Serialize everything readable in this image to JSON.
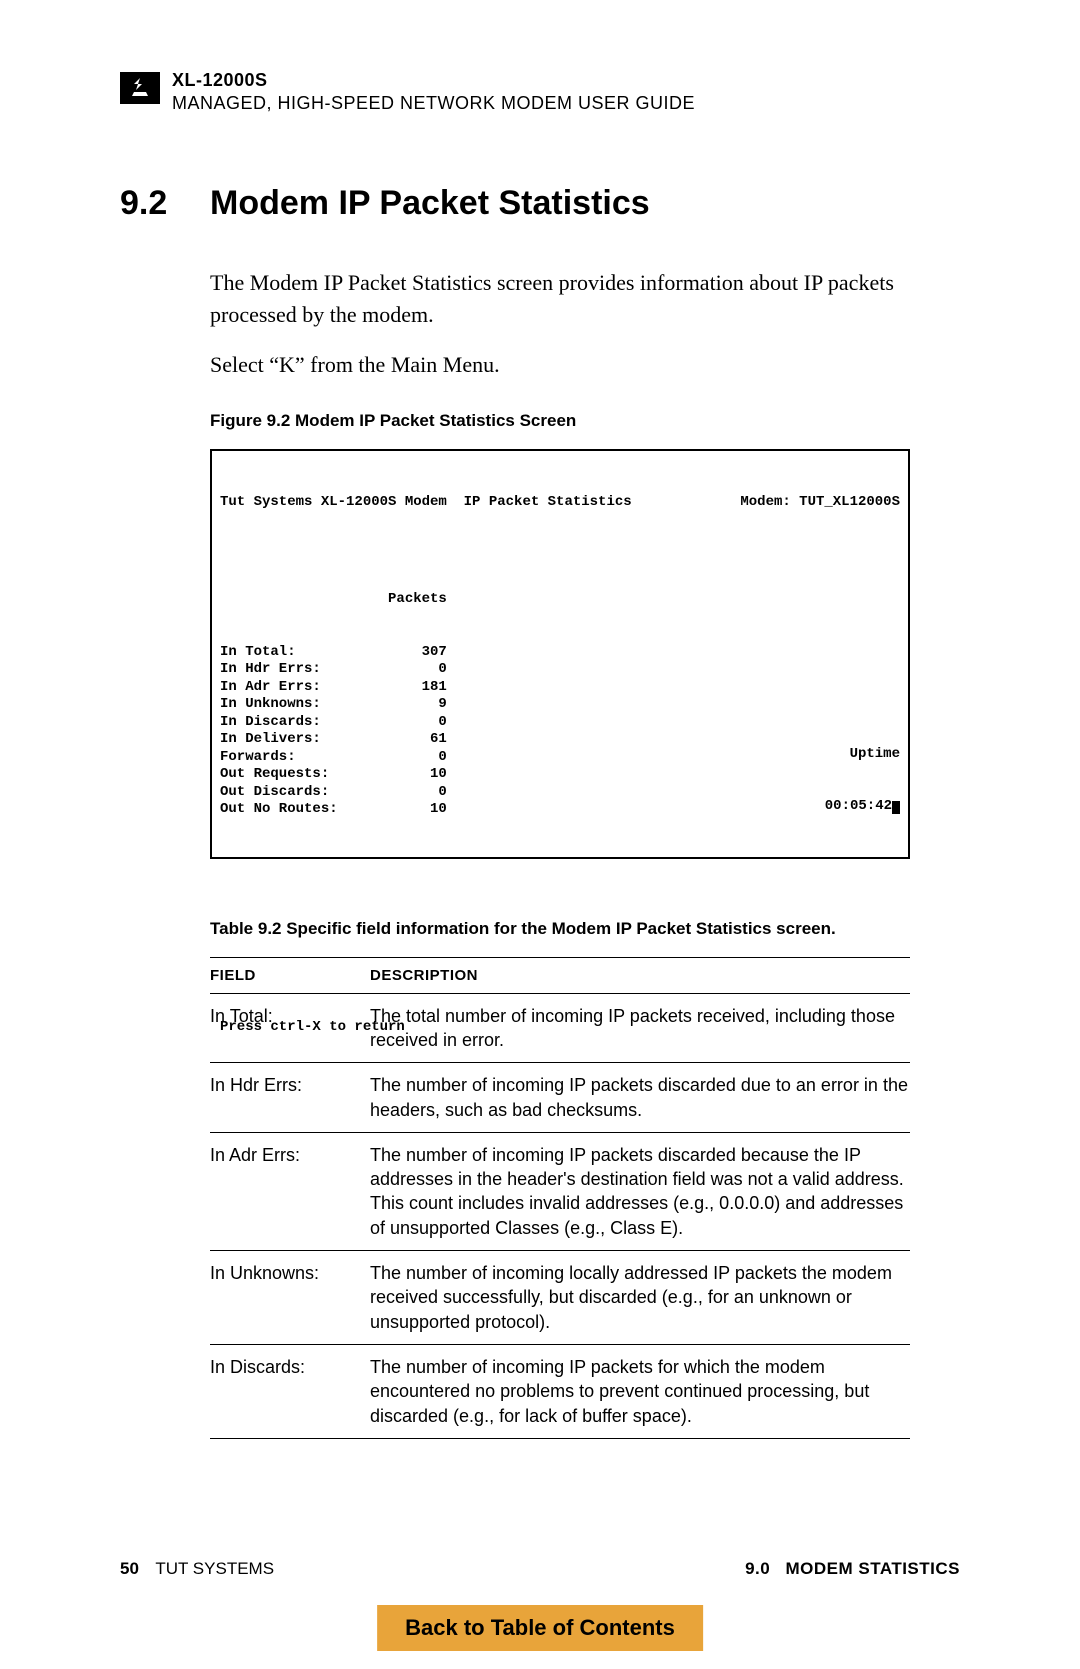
{
  "header": {
    "model": "XL-12000S",
    "subtitle": "MANAGED, HIGH-SPEED NETWORK MODEM USER GUIDE"
  },
  "section": {
    "number": "9.2",
    "title": "Modem IP Packet Statistics"
  },
  "paragraphs": {
    "p1": "The Modem IP Packet Statistics screen provides information about IP packets processed by the modem.",
    "p2": "Select “K” from the Main Menu."
  },
  "figure_caption": "Figure 9.2  Modem IP Packet Statistics Screen",
  "terminal": {
    "title_left": "Tut Systems XL-12000S Modem  IP Packet Statistics",
    "title_right": "Modem: TUT_XL12000S",
    "col_header": "Packets",
    "rows": [
      {
        "label": "In Total:",
        "value": "307"
      },
      {
        "label": "In Hdr Errs:",
        "value": "0"
      },
      {
        "label": "In Adr Errs:",
        "value": "181"
      },
      {
        "label": "In Unknowns:",
        "value": "9"
      },
      {
        "label": "In Discards:",
        "value": "0"
      },
      {
        "label": "In Delivers:",
        "value": "61"
      },
      {
        "label": "Forwards:",
        "value": "0"
      },
      {
        "label": "Out Requests:",
        "value": "10"
      },
      {
        "label": "Out Discards:",
        "value": "0"
      },
      {
        "label": "Out No Routes:",
        "value": "10"
      }
    ],
    "return_msg": "Press ctrl-X to return",
    "uptime_label": "Uptime",
    "uptime_value": "00:05:42"
  },
  "table_caption": "Table 9.2  Specific field information for the Modem IP Packet Statistics screen.",
  "table": {
    "header_field": "FIELD",
    "header_desc": "DESCRIPTION",
    "rows": [
      {
        "field": "In Total:",
        "desc": "The total number of incoming IP packets received, including those received in error."
      },
      {
        "field": "In Hdr Errs:",
        "desc": "The number of incoming IP packets discarded due to an error in the headers, such as bad checksums."
      },
      {
        "field": "In Adr Errs:",
        "desc": "The number of incoming IP packets discarded because the IP addresses in the header's destination field was not a valid address. This count includes invalid addresses (e.g., 0.0.0.0) and addresses of unsupported Classes (e.g., Class E)."
      },
      {
        "field": "In Unknowns:",
        "desc": "The number of incoming locally addressed IP packets the modem received successfully, but discarded (e.g., for an unknown or unsupported protocol)."
      },
      {
        "field": "In Discards:",
        "desc": "The number of incoming IP packets for which the modem encountered no problems to prevent continued processing, but discarded (e.g., for lack of buffer space)."
      }
    ]
  },
  "footer": {
    "page_number": "50",
    "company": "TUT SYSTEMS",
    "section_number": "9.0",
    "section_name": "MODEM STATISTICS"
  },
  "toc_link": "Back to Table of Contents",
  "colors": {
    "toc_bg": "#e8a43a"
  }
}
